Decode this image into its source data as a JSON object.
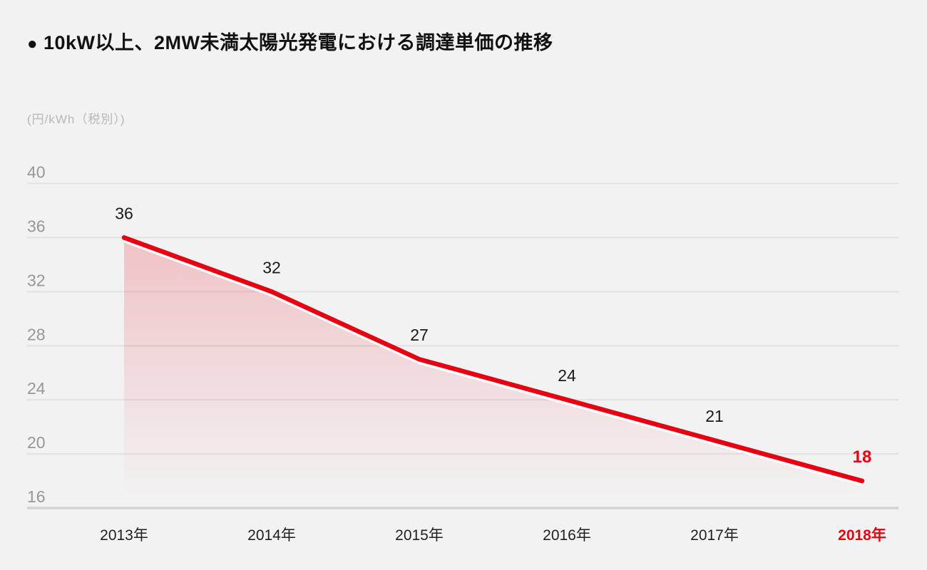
{
  "colors": {
    "background": "#f2f2f2",
    "accent_red": "#e60012",
    "grid_line": "#e1e1e1",
    "axis_line": "#d2d2d2",
    "title_text": "#111111",
    "y_tick_text": "#979797",
    "unit_text": "#b8b8b8",
    "x_tick_text": "#1f1f1f",
    "data_label_text": "#1a1a1a",
    "separator_white": "#ffffff"
  },
  "header": {
    "bullet": "●",
    "title": "10kW以上、2MW未満太陽光発電における調達単価の推移"
  },
  "chart_data": {
    "type": "area",
    "title": "10kW以上、2MW未満太陽光発電における調達単価の推移",
    "ylabel": "(円/kWh（税別）)",
    "xlabel": "",
    "categories": [
      "2013年",
      "2014年",
      "2015年",
      "2016年",
      "2017年",
      "2018年"
    ],
    "values": [
      36,
      32,
      27,
      24,
      21,
      18
    ],
    "data_labels": [
      "36",
      "32",
      "27",
      "24",
      "21",
      "18"
    ],
    "series_name": "調達単価",
    "yticks": [
      40,
      36,
      32,
      28,
      24,
      20,
      16
    ],
    "ylim": [
      16,
      40
    ],
    "grid": "horizontal",
    "legend": "none",
    "highlight_last_index": 5
  }
}
